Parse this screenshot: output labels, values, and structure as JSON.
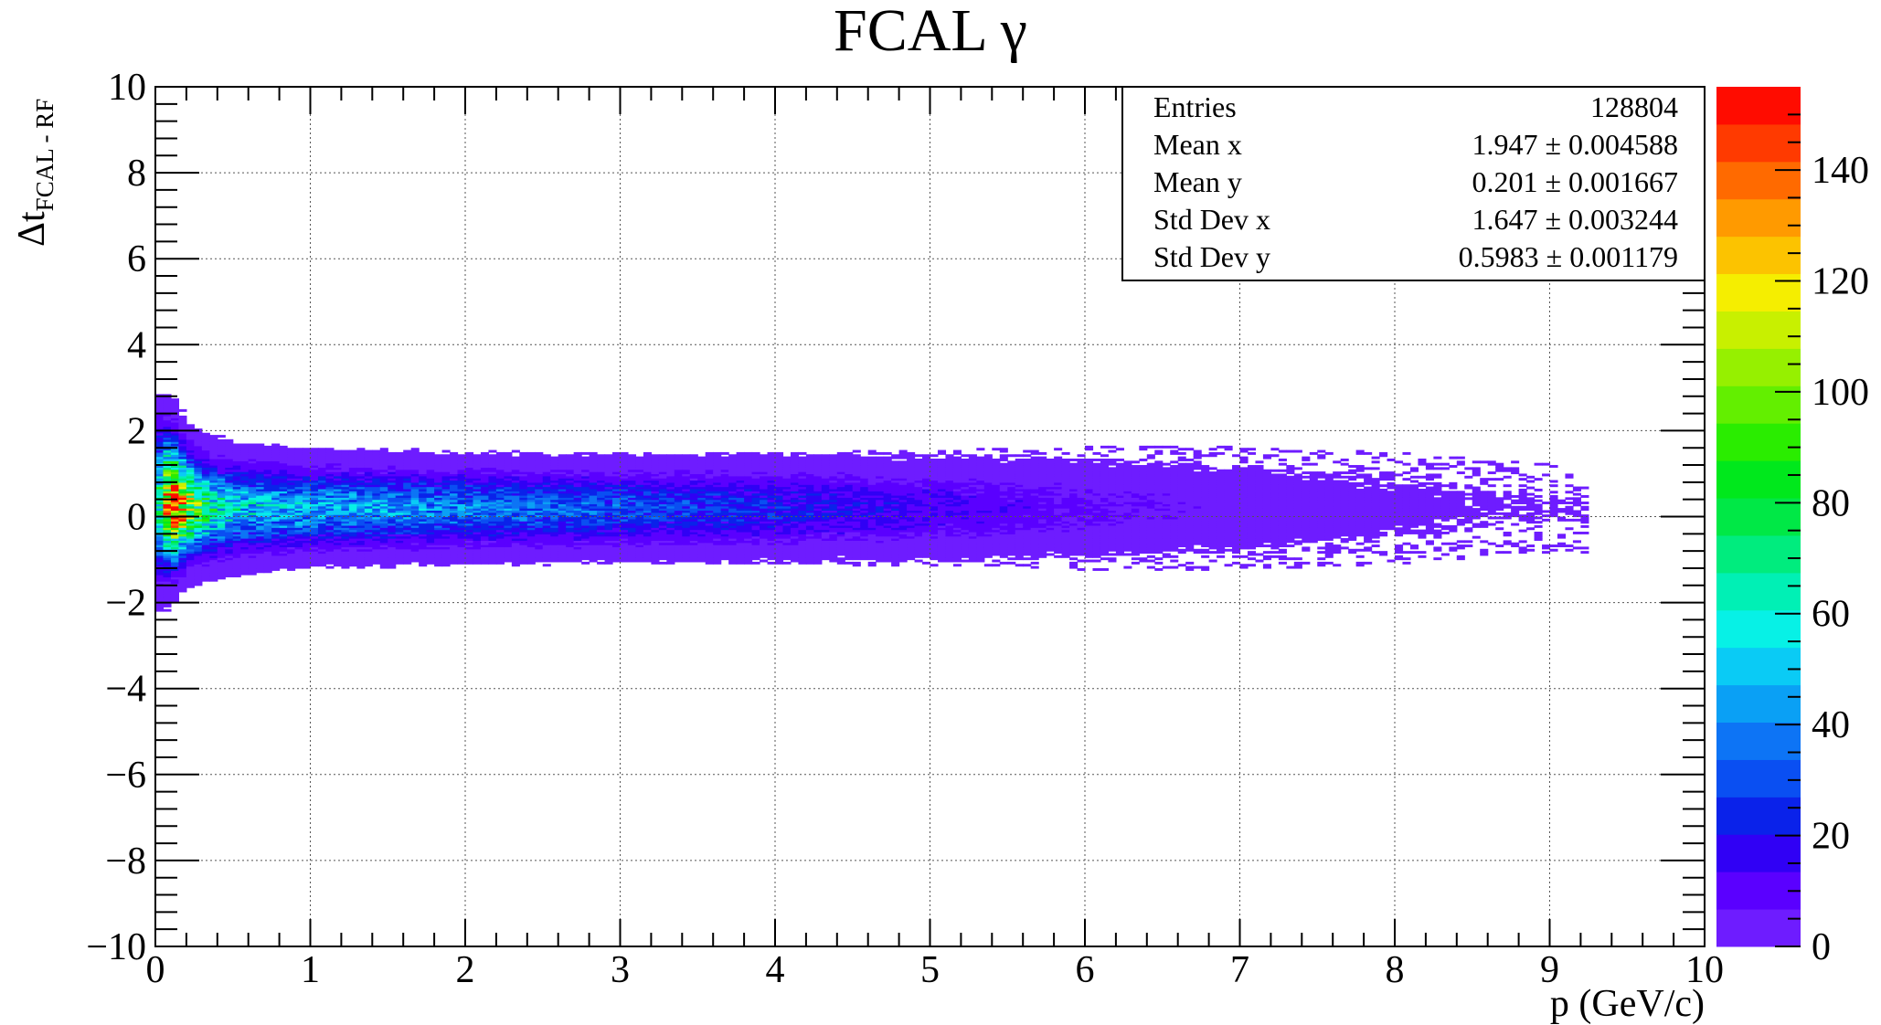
{
  "chart_data": {
    "type": "heatmap",
    "title": "FCAL γ",
    "xlabel": "p (GeV/c)",
    "ylabel_main": "Δt",
    "ylabel_sub": "FCAL - RF",
    "xlim": [
      0,
      10
    ],
    "ylim": [
      -10,
      10
    ],
    "x_ticks": [
      "0",
      "1",
      "2",
      "3",
      "4",
      "5",
      "6",
      "7",
      "8",
      "9",
      "10"
    ],
    "y_ticks": [
      "−10",
      "−8",
      "−6",
      "−4",
      "−2",
      "0",
      "2",
      "4",
      "6",
      "8",
      "10"
    ],
    "grid": true,
    "z_range": [
      0,
      155
    ],
    "z_ticks": [
      "0",
      "20",
      "40",
      "60",
      "80",
      "100",
      "120",
      "140"
    ],
    "colors": {
      "palette": [
        "#6e1cff",
        "#5a00ff",
        "#3000f5",
        "#0a22ea",
        "#0a4ff2",
        "#0d74f5",
        "#0aa0f5",
        "#0acbf5",
        "#07f1e6",
        "#00f0b5",
        "#00ec7e",
        "#00e846",
        "#00e81c",
        "#2aed00",
        "#63ef00",
        "#96f000",
        "#c8f000",
        "#f5ee00",
        "#fcc300",
        "#ff9a00",
        "#ff6a00",
        "#ff3a00",
        "#ff0c00"
      ]
    },
    "stats": {
      "rows": [
        {
          "label": "Entries",
          "value": "128804"
        },
        {
          "label": "Mean x",
          "value": "1.947 ± 0.004588"
        },
        {
          "label": "Mean y",
          "value": "0.201 ± 0.001667"
        },
        {
          "label": "Std Dev x",
          "value": "1.647 ± 0.003244"
        },
        {
          "label": "Std Dev y",
          "value": "0.5983 ± 0.001179"
        }
      ]
    },
    "density_profile": [
      {
        "p": 0.03,
        "count": 70,
        "width": 0.9
      },
      {
        "p": 0.08,
        "count": 130,
        "width": 0.8
      },
      {
        "p": 0.13,
        "count": 152,
        "width": 0.75
      },
      {
        "p": 0.2,
        "count": 110,
        "width": 0.65
      },
      {
        "p": 0.3,
        "count": 75,
        "width": 0.6
      },
      {
        "p": 0.5,
        "count": 55,
        "width": 0.55
      },
      {
        "p": 1.0,
        "count": 45,
        "width": 0.5
      },
      {
        "p": 2.0,
        "count": 38,
        "width": 0.48
      },
      {
        "p": 3.0,
        "count": 30,
        "width": 0.48
      },
      {
        "p": 4.0,
        "count": 22,
        "width": 0.5
      },
      {
        "p": 5.0,
        "count": 14,
        "width": 0.52
      },
      {
        "p": 6.0,
        "count": 8,
        "width": 0.55
      },
      {
        "p": 7.0,
        "count": 4,
        "width": 0.55
      },
      {
        "p": 8.0,
        "count": 2,
        "width": 0.5
      },
      {
        "p": 9.0,
        "count": 1,
        "width": 0.4
      }
    ]
  }
}
